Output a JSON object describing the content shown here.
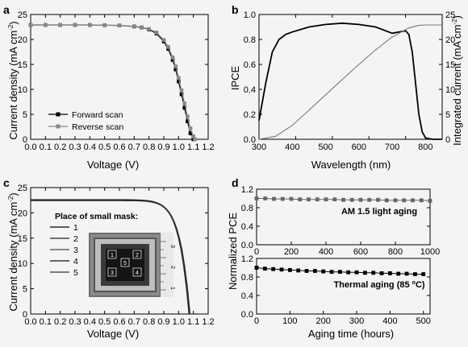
{
  "chart_data": [
    {
      "panel": "a",
      "type": "line",
      "xlabel": "Voltage (V)",
      "ylabel": "Current density (mA cm",
      "ylabel_sup": "-2",
      "ylabel_close": ")",
      "xlim": [
        0,
        1.2
      ],
      "ylim": [
        0,
        25
      ],
      "xticks": [
        "0.0",
        "0.1",
        "0.2",
        "0.3",
        "0.4",
        "0.5",
        "0.6",
        "0.7",
        "0.8",
        "0.9",
        "1.0",
        "1.1",
        "1.2"
      ],
      "yticks": [
        "0",
        "5",
        "10",
        "15",
        "20",
        "25"
      ],
      "legend": "bottom-right",
      "series": [
        {
          "name": "Forward scan",
          "color": "#000000",
          "marker": "square",
          "x": [
            0,
            0.1,
            0.2,
            0.3,
            0.4,
            0.5,
            0.6,
            0.7,
            0.75,
            0.8,
            0.85,
            0.9,
            0.93,
            0.96,
            0.98,
            1.0,
            1.02,
            1.04,
            1.06,
            1.08,
            1.1
          ],
          "y": [
            22.9,
            22.9,
            22.9,
            22.9,
            22.9,
            22.85,
            22.8,
            22.6,
            22.4,
            22.0,
            21.2,
            19.6,
            18.1,
            15.9,
            14.0,
            11.6,
            9.0,
            6.3,
            3.6,
            1.2,
            0
          ]
        },
        {
          "name": "Reverse scan",
          "color": "#888888",
          "marker": "square",
          "x": [
            0,
            0.1,
            0.2,
            0.3,
            0.4,
            0.5,
            0.6,
            0.7,
            0.75,
            0.8,
            0.85,
            0.9,
            0.93,
            0.96,
            0.98,
            1.0,
            1.02,
            1.04,
            1.06,
            1.08,
            1.1,
            1.11
          ],
          "y": [
            22.9,
            22.9,
            22.9,
            22.9,
            22.9,
            22.85,
            22.8,
            22.65,
            22.45,
            22.1,
            21.4,
            19.9,
            18.5,
            16.4,
            14.6,
            12.3,
            9.8,
            7.2,
            4.6,
            2.2,
            0.6,
            0
          ]
        }
      ]
    },
    {
      "panel": "b",
      "type": "line",
      "xlabel": "Wavelength (nm)",
      "ylabel": "IPCE",
      "y2label": "Integrated current (mA cm",
      "y2label_sup": "-2",
      "y2label_close": ")",
      "xlim": [
        300,
        850
      ],
      "ylim": [
        0,
        1.0
      ],
      "y2lim": [
        0,
        25
      ],
      "xticks": [
        "300",
        "400",
        "500",
        "600",
        "700",
        "800"
      ],
      "yticks": [
        "0.0",
        "0.2",
        "0.4",
        "0.6",
        "0.8",
        "1.0"
      ],
      "y2ticks": [
        "0",
        "5",
        "10",
        "15",
        "20",
        "25"
      ],
      "series": [
        {
          "name": "IPCE",
          "color": "#000000",
          "axis": "left",
          "x": [
            300,
            320,
            340,
            360,
            380,
            400,
            450,
            500,
            550,
            600,
            650,
            680,
            700,
            720,
            740,
            750,
            760,
            770,
            780,
            790,
            800,
            820,
            850
          ],
          "y": [
            0.15,
            0.45,
            0.7,
            0.8,
            0.84,
            0.86,
            0.9,
            0.92,
            0.93,
            0.92,
            0.9,
            0.87,
            0.85,
            0.86,
            0.87,
            0.84,
            0.7,
            0.45,
            0.2,
            0.06,
            0.01,
            0.0,
            0.0
          ]
        },
        {
          "name": "Integrated current",
          "color": "#777777",
          "axis": "right",
          "x": [
            300,
            350,
            400,
            450,
            500,
            550,
            600,
            650,
            700,
            750,
            780,
            800,
            850
          ],
          "y": [
            0,
            0.6,
            2.8,
            5.8,
            8.9,
            12.0,
            15.0,
            17.9,
            20.5,
            22.3,
            22.8,
            22.9,
            22.9
          ]
        }
      ]
    },
    {
      "panel": "c",
      "type": "line",
      "xlabel": "Voltage (V)",
      "ylabel": "Current density (mA cm",
      "ylabel_sup": "-2",
      "ylabel_close": ")",
      "xlim": [
        0,
        1.2
      ],
      "ylim": [
        0,
        25
      ],
      "xticks": [
        "0.0",
        "0.1",
        "0.2",
        "0.3",
        "0.4",
        "0.5",
        "0.6",
        "0.7",
        "0.8",
        "0.9",
        "1.0",
        "1.1",
        "1.2"
      ],
      "yticks": [
        "0",
        "5",
        "10",
        "15",
        "20",
        "25"
      ],
      "legend_title": "Place of small mask:",
      "inset_labels": [
        "1",
        "2",
        "3",
        "4",
        "5"
      ],
      "ruler_labels": [
        "3",
        "2",
        "1"
      ],
      "series": [
        {
          "name": "1",
          "color": "#000000",
          "voc": 1.07,
          "jsc": 22.6
        },
        {
          "name": "2",
          "color": "#222222",
          "voc": 1.072,
          "jsc": 22.5
        },
        {
          "name": "3",
          "color": "#444444",
          "voc": 1.074,
          "jsc": 22.4
        },
        {
          "name": "4",
          "color": "#111111",
          "voc": 1.076,
          "jsc": 22.55
        },
        {
          "name": "5",
          "color": "#333333",
          "voc": 1.078,
          "jsc": 22.45
        }
      ]
    },
    {
      "panel": "d",
      "type": "line",
      "ylabel": "Normalized PCE",
      "xlabel": "Aging time (hours)",
      "top": {
        "annotation": "AM 1.5 light aging",
        "xlim": [
          0,
          1000
        ],
        "ylim": [
          0,
          1.2
        ],
        "xticks": [
          "0",
          "200",
          "400",
          "600",
          "800",
          "1000"
        ],
        "yticks": [
          "0.0",
          "0.4",
          "0.8",
          "1.2"
        ],
        "series": {
          "color": "#666666",
          "x": [
            0,
            50,
            100,
            150,
            200,
            250,
            300,
            350,
            400,
            450,
            500,
            550,
            600,
            650,
            700,
            750,
            800,
            850,
            900,
            950,
            1000
          ],
          "y": [
            1.0,
            1.0,
            0.99,
            0.99,
            0.99,
            0.98,
            0.98,
            0.98,
            0.98,
            0.98,
            0.97,
            0.97,
            0.97,
            0.97,
            0.97,
            0.96,
            0.96,
            0.96,
            0.96,
            0.96,
            0.95
          ]
        }
      },
      "bottom": {
        "annotation": "Thermal aging (85 ",
        "annotation_sup": "o",
        "annotation_close": "C)",
        "xlim": [
          0,
          520
        ],
        "ylim": [
          0,
          1.2
        ],
        "xticks": [
          "0",
          "100",
          "200",
          "300",
          "400",
          "500"
        ],
        "yticks": [
          "0.0",
          "0.4",
          "0.8",
          "1.2"
        ],
        "series": {
          "color": "#000000",
          "x": [
            0,
            25,
            50,
            75,
            100,
            125,
            150,
            175,
            200,
            225,
            250,
            275,
            300,
            325,
            350,
            375,
            400,
            425,
            450,
            475,
            500
          ],
          "y": [
            1.0,
            0.98,
            0.97,
            0.96,
            0.95,
            0.94,
            0.93,
            0.93,
            0.92,
            0.91,
            0.91,
            0.9,
            0.9,
            0.89,
            0.89,
            0.88,
            0.88,
            0.87,
            0.87,
            0.86,
            0.86
          ]
        }
      }
    }
  ]
}
